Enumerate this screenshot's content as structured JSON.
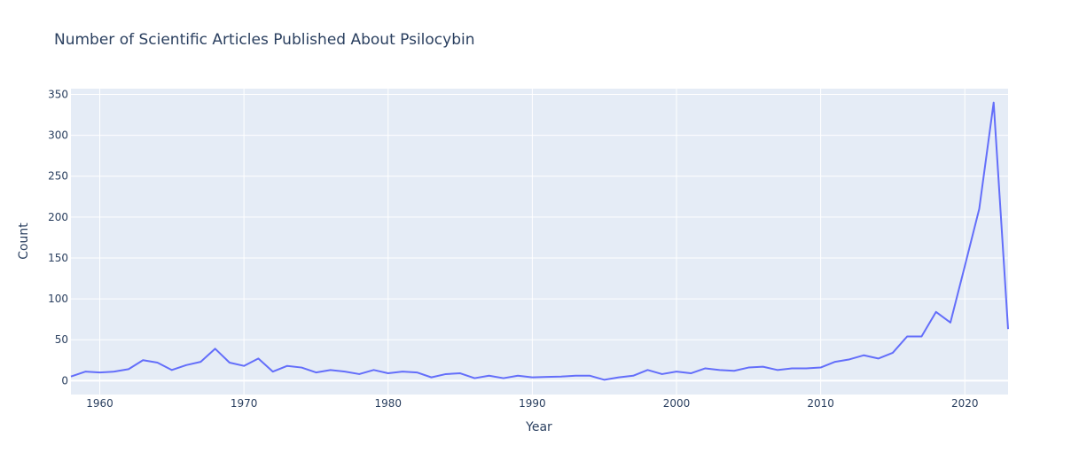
{
  "chart_data": {
    "type": "line",
    "title": "Number of Scientific Articles Published About Psilocybin",
    "xlabel": "Year",
    "ylabel": "Count",
    "xlim": [
      1958,
      2023
    ],
    "ylim": [
      -17,
      357
    ],
    "x_ticks": [
      1960,
      1970,
      1980,
      1990,
      2000,
      2010,
      2020
    ],
    "y_ticks": [
      0,
      50,
      100,
      150,
      200,
      250,
      300,
      350
    ],
    "grid": true,
    "legend": "none",
    "colors": {
      "plot_background": "#e5ecf6",
      "gridline": "#ffffff",
      "line": "#636efa",
      "text": "#2a3f5f"
    },
    "series": [
      {
        "x": [
          1958,
          1959,
          1960,
          1961,
          1962,
          1963,
          1964,
          1965,
          1966,
          1967,
          1968,
          1969,
          1970,
          1971,
          1972,
          1973,
          1974,
          1975,
          1976,
          1977,
          1978,
          1979,
          1980,
          1981,
          1982,
          1983,
          1984,
          1985,
          1986,
          1987,
          1988,
          1989,
          1990,
          1991,
          1992,
          1993,
          1994,
          1995,
          1996,
          1997,
          1998,
          1999,
          2000,
          2001,
          2002,
          2003,
          2004,
          2005,
          2006,
          2007,
          2008,
          2009,
          2010,
          2011,
          2012,
          2013,
          2014,
          2015,
          2016,
          2017,
          2018,
          2019,
          2020,
          2021,
          2022,
          2023
        ],
        "values": [
          5,
          11,
          10,
          11,
          14,
          25,
          22,
          13,
          19,
          23,
          39,
          22,
          18,
          27,
          11,
          18,
          16,
          10,
          13,
          11,
          8,
          13,
          9,
          11,
          10,
          4,
          8,
          9,
          3,
          6,
          3,
          6,
          4,
          4.5,
          5,
          6,
          6,
          1,
          4,
          6,
          13,
          8,
          11,
          9,
          15,
          13,
          12,
          16,
          17,
          13,
          15,
          15,
          16,
          23,
          26,
          31,
          27,
          34,
          54,
          54,
          84,
          71,
          140,
          210,
          340,
          63
        ]
      }
    ]
  }
}
